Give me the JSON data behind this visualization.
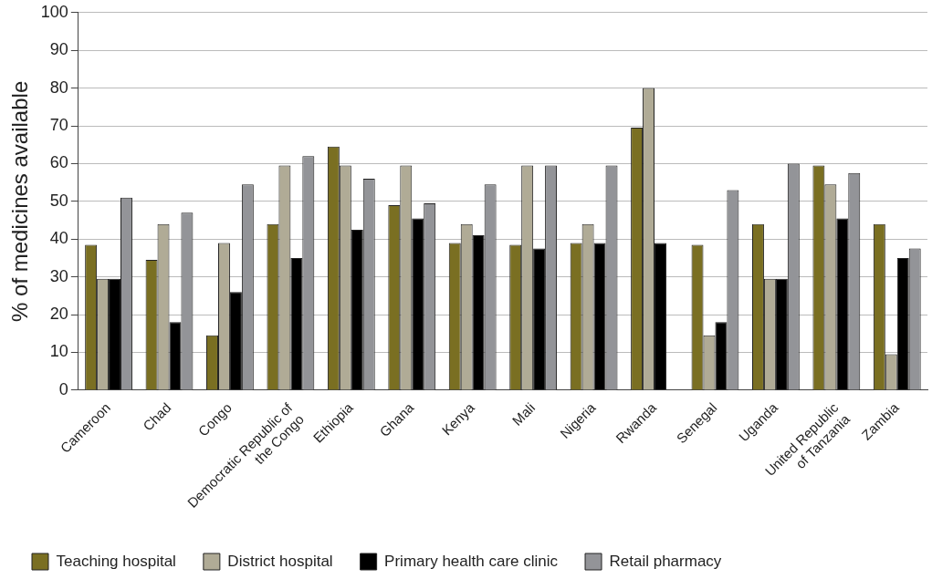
{
  "chart_data": {
    "type": "bar",
    "ylabel": "% of medicines available",
    "categories": [
      "Cameroon",
      "Chad",
      "Congo",
      "Democratic Republic of the Congo",
      "Ethiopia",
      "Ghana",
      "Kenya",
      "Mali",
      "Nigeria",
      "Rwanda",
      "Senegal",
      "Uganda",
      "United Republic of Tanzania",
      "Zambia"
    ],
    "series": [
      {
        "name": "Teaching hospital",
        "color": "#7a6f22",
        "values": [
          38.5,
          34.5,
          14.5,
          44,
          64.5,
          49,
          39,
          38.5,
          39,
          69.5,
          38.5,
          44,
          59.5,
          44
        ]
      },
      {
        "name": "District hospital",
        "color": "#b0ab96",
        "values": [
          29.5,
          44,
          39,
          59.5,
          59.5,
          59.5,
          44,
          59.5,
          44,
          80,
          14.5,
          29.5,
          54.5,
          9.5
        ]
      },
      {
        "name": "Primary health care clinic",
        "color": "#000000",
        "values": [
          29.5,
          18,
          26,
          35,
          42.5,
          45.5,
          41,
          37.5,
          39,
          39,
          18,
          29.5,
          45.5,
          35
        ]
      },
      {
        "name": "Retail pharmacy",
        "color": "#939498",
        "values": [
          51,
          47,
          54.5,
          62,
          56,
          49.5,
          54.5,
          59.5,
          59.5,
          null,
          53,
          60,
          57.5,
          37.5
        ]
      }
    ],
    "ylim": [
      0,
      100
    ],
    "yticks": [
      0,
      10,
      20,
      30,
      40,
      50,
      60,
      70,
      80,
      90,
      100
    ],
    "grid": "y",
    "legend": "bottom left"
  }
}
